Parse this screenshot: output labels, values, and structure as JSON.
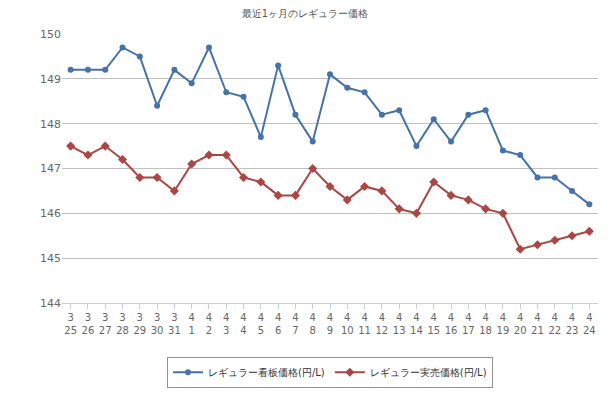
{
  "chart_data": {
    "type": "line",
    "title": "最近1ヶ月のレギュラー価格",
    "categories": [
      "3\n25",
      "3\n26",
      "3\n27",
      "3\n28",
      "3\n29",
      "3\n30",
      "3\n31",
      "4\n1",
      "4\n2",
      "4\n3",
      "4\n4",
      "4\n5",
      "4\n6",
      "4\n7",
      "4\n8",
      "4\n9",
      "4\n10",
      "4\n11",
      "4\n12",
      "4\n13",
      "4\n14",
      "4\n15",
      "4\n16",
      "4\n17",
      "4\n18",
      "4\n19",
      "4\n20",
      "4\n21",
      "4\n22",
      "4\n23",
      "4\n24"
    ],
    "series": [
      {
        "name": "レギュラー看板価格(円/L)",
        "color": "#4572A7",
        "marker": "circle",
        "values": [
          149.2,
          149.2,
          149.2,
          149.7,
          149.5,
          148.4,
          149.2,
          148.9,
          149.7,
          148.7,
          148.6,
          147.7,
          149.3,
          148.2,
          147.6,
          149.1,
          148.8,
          148.7,
          148.2,
          148.3,
          147.5,
          148.1,
          147.6,
          148.2,
          148.3,
          147.4,
          147.3,
          146.8,
          146.8,
          146.5,
          146.2
        ]
      },
      {
        "name": "レギュラー実売価格(円/L)",
        "color": "#AA4643",
        "marker": "diamond",
        "values": [
          147.5,
          147.3,
          147.5,
          147.2,
          146.8,
          146.8,
          146.5,
          147.1,
          147.3,
          147.3,
          146.8,
          146.7,
          146.4,
          146.4,
          147.0,
          146.6,
          146.3,
          146.6,
          146.5,
          146.1,
          146.0,
          146.7,
          146.4,
          146.3,
          146.1,
          146.0,
          145.2,
          145.3,
          145.4,
          145.5,
          145.6
        ]
      }
    ],
    "ylim": [
      144,
      150
    ],
    "yticks": [
      144,
      145,
      146,
      147,
      148,
      149,
      150
    ],
    "grid": true,
    "legend": "bottom"
  }
}
